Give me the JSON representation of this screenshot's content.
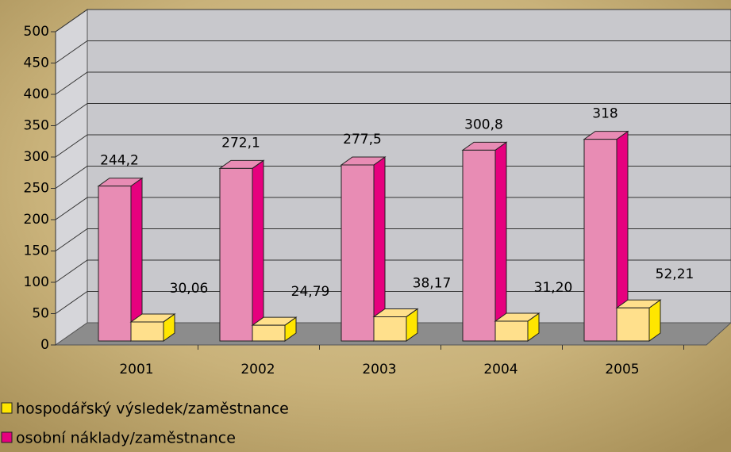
{
  "chart_data": {
    "type": "bar3d",
    "categories": [
      "2001",
      "2002",
      "2003",
      "2004",
      "2005"
    ],
    "series": [
      {
        "name": "osobní náklady/zaměstnance",
        "color": "#e88cb4",
        "side_color": "#e6007e",
        "values": [
          244.2,
          272.1,
          277.5,
          300.8,
          318
        ],
        "value_labels": [
          "244,2",
          "272,1",
          "277,5",
          "300,8",
          "318"
        ]
      },
      {
        "name": "hospodářský výsledek/zaměstnance",
        "color": "#ffe08c",
        "side_color": "#ffe600",
        "values": [
          30.06,
          24.79,
          38.17,
          31.2,
          52.21
        ],
        "value_labels": [
          "30,06",
          "24,79",
          "38,17",
          "31,20",
          "52,21"
        ]
      }
    ],
    "ylim": [
      0,
      500
    ],
    "yticks": [
      0,
      50,
      100,
      150,
      200,
      250,
      300,
      350,
      400,
      450,
      500
    ],
    "grid": true
  }
}
